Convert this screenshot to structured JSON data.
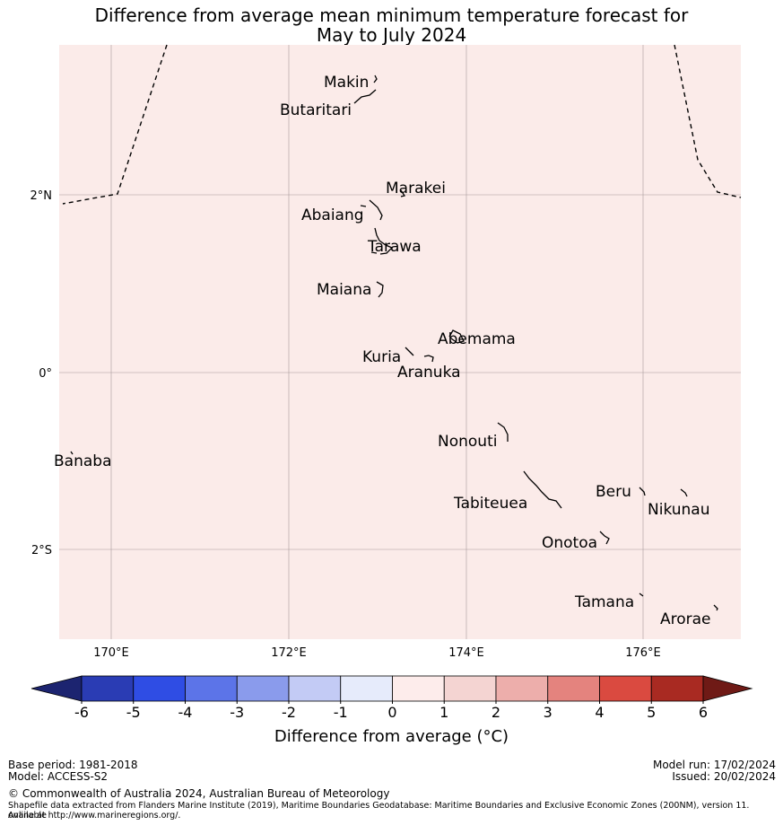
{
  "title": {
    "line1": "Difference from average mean minimum temperature forecast for",
    "line2": "May to July 2024"
  },
  "map": {
    "background_color": "#fbebe9",
    "lon_ticks": [
      "170°E",
      "172°E",
      "174°E",
      "176°E"
    ],
    "lat_ticks": [
      "2°N",
      "0°",
      "2°S"
    ],
    "islands": [
      {
        "name": "Makin"
      },
      {
        "name": "Butaritari"
      },
      {
        "name": "Marakei"
      },
      {
        "name": "Abaiang"
      },
      {
        "name": "Tarawa"
      },
      {
        "name": "Maiana"
      },
      {
        "name": "Abemama"
      },
      {
        "name": "Kuria"
      },
      {
        "name": "Aranuka"
      },
      {
        "name": "Banaba"
      },
      {
        "name": "Nonouti"
      },
      {
        "name": "Beru"
      },
      {
        "name": "Tabiteuea"
      },
      {
        "name": "Nikunau"
      },
      {
        "name": "Onotoa"
      },
      {
        "name": "Tamana"
      },
      {
        "name": "Arorae"
      }
    ]
  },
  "colorbar": {
    "ticks": [
      "-6",
      "-5",
      "-4",
      "-3",
      "-2",
      "-1",
      "0",
      "1",
      "2",
      "3",
      "4",
      "5",
      "6"
    ],
    "colors": [
      "#1c2470",
      "#2a3cb4",
      "#2f4de4",
      "#5c74e8",
      "#8a9bec",
      "#c3cbf5",
      "#e6ebfb",
      "#fdeceb",
      "#f4d4d2",
      "#edaeab",
      "#e4837e",
      "#da4a40",
      "#a92a22",
      "#6f1a16"
    ],
    "label": "Difference from average (°C)"
  },
  "footer": {
    "base_period": "Base period: 1981-2018",
    "model": "Model: ACCESS-S2",
    "model_run": "Model run: 17/02/2024",
    "issued": "Issued: 20/02/2024",
    "copyright": "© Commonwealth of Australia 2024, Australian Bureau of Meteorology",
    "shapefile_line1": "Shapefile data extracted from Flanders Marine Institute (2019), Maritime Boundaries Geodatabase: Maritime Boundaries and Exclusive Economic Zones (200NM), version 11. Available",
    "shapefile_line2": "online at http://www.marineregions.org/."
  }
}
